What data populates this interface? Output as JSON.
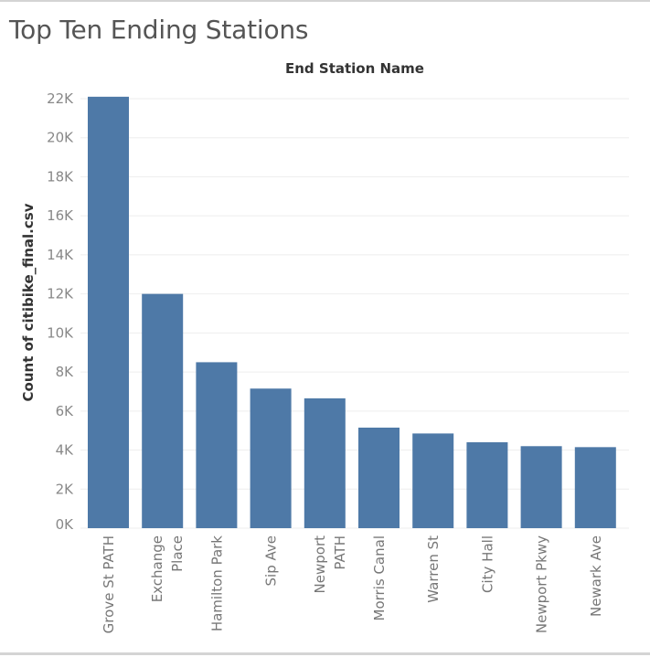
{
  "page": {
    "title": "Top Ten Ending Stations"
  },
  "chart_data": {
    "type": "bar",
    "title": "Top Ten Ending Stations",
    "xlabel": "End Station Name",
    "ylabel": "Count of citibike_final.csv",
    "categories": [
      [
        "Grove St PATH"
      ],
      [
        "Exchange",
        "Place"
      ],
      [
        "Hamilton Park"
      ],
      [
        "Sip Ave"
      ],
      [
        "Newport",
        "PATH"
      ],
      [
        "Morris Canal"
      ],
      [
        "Warren St"
      ],
      [
        "City Hall"
      ],
      [
        "Newport Pkwy"
      ],
      [
        "Newark Ave"
      ]
    ],
    "values": [
      22100,
      12000,
      8500,
      7150,
      6650,
      5150,
      4850,
      4400,
      4200,
      4150
    ],
    "ylim": [
      0,
      22000
    ],
    "yticks": [
      0,
      2000,
      4000,
      6000,
      8000,
      10000,
      12000,
      14000,
      16000,
      18000,
      20000,
      22000
    ],
    "ytick_labels": [
      "0K",
      "2K",
      "4K",
      "6K",
      "8K",
      "10K",
      "12K",
      "14K",
      "16K",
      "18K",
      "20K",
      "22K"
    ],
    "bar_color": "#4e79a7",
    "grid": true,
    "legend": "none"
  }
}
